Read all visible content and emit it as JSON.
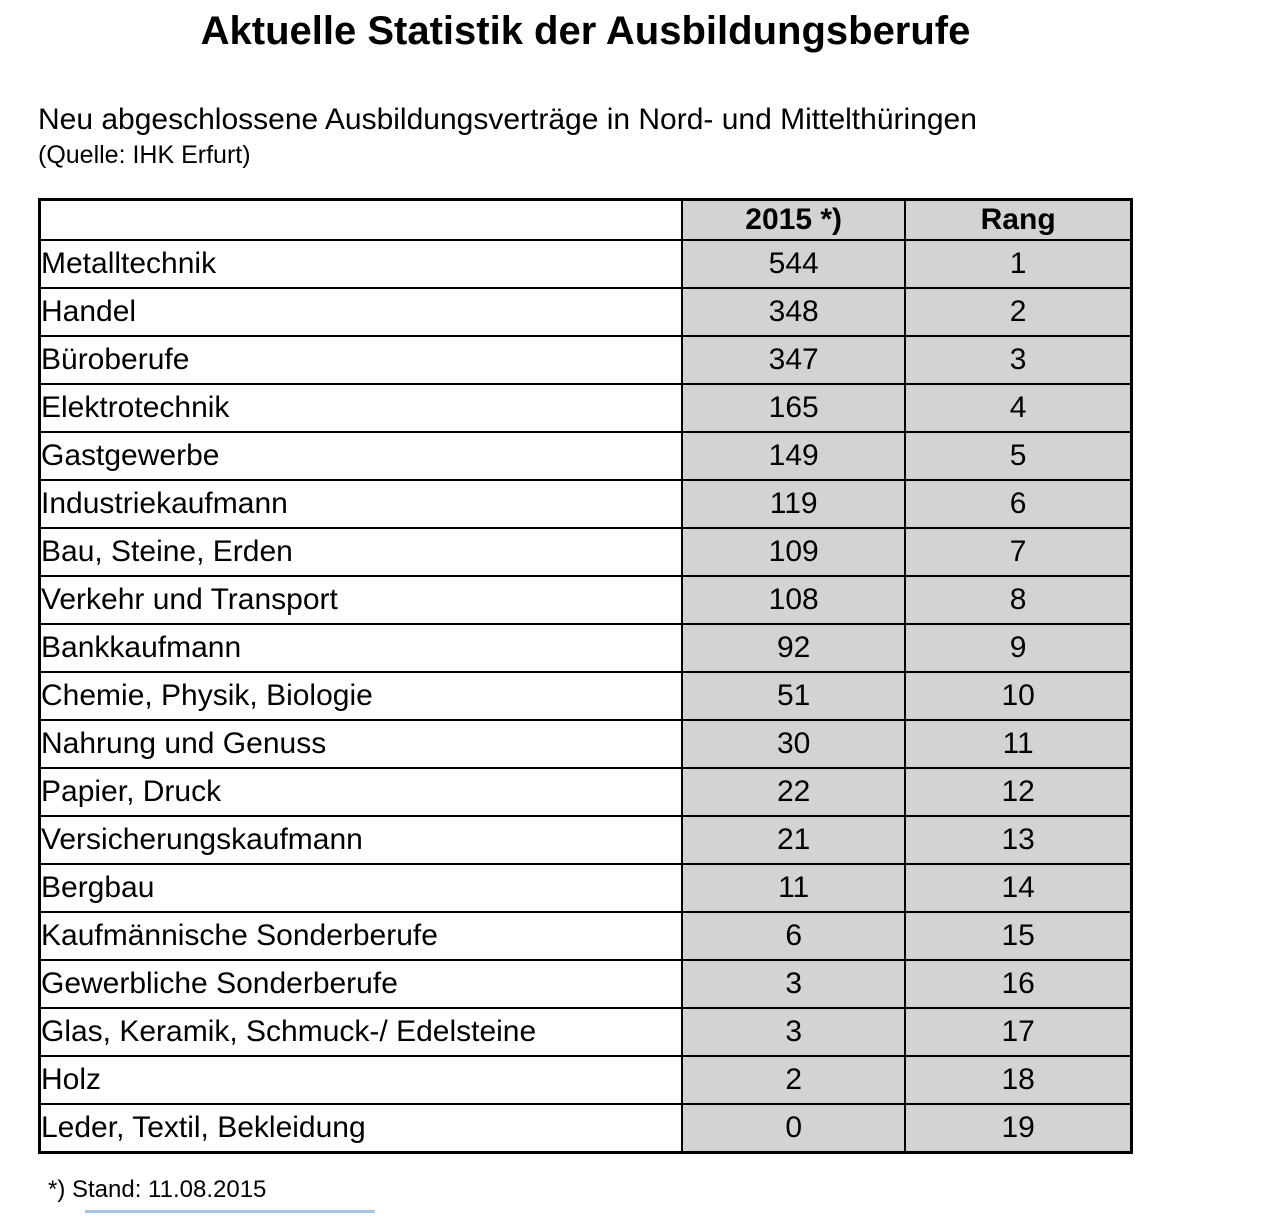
{
  "title": "Aktuelle Statistik der Ausbildungsberufe",
  "subtitle": "Neu abgeschlossene Ausbildungsverträge in Nord- und Mittelthüringen",
  "source": "(Quelle: IHK Erfurt)",
  "footnote": "*) Stand: 11.08.2015",
  "colors": {
    "cell_shade": "#d3d3d3",
    "table_border": "#000000",
    "accent_line": "#a9c4e2"
  },
  "chart_data": {
    "type": "table",
    "title": "Aktuelle Statistik der Ausbildungsberufe",
    "subtitle": "Neu abgeschlossene Ausbildungsverträge in Nord- und Mittelthüringen",
    "source": "(Quelle: IHK Erfurt)",
    "footnote": "*) Stand: 11.08.2015",
    "columns": [
      "",
      "2015 *)",
      "Rang"
    ],
    "rows": [
      {
        "label": "Metalltechnik",
        "value": "544",
        "rank": "1"
      },
      {
        "label": "Handel",
        "value": "348",
        "rank": "2"
      },
      {
        "label": "Büroberufe",
        "value": "347",
        "rank": "3"
      },
      {
        "label": "Elektrotechnik",
        "value": "165",
        "rank": "4"
      },
      {
        "label": "Gastgewerbe",
        "value": "149",
        "rank": "5"
      },
      {
        "label": "Industriekaufmann",
        "value": "119",
        "rank": "6"
      },
      {
        "label": "Bau, Steine, Erden",
        "value": "109",
        "rank": "7"
      },
      {
        "label": "Verkehr und Transport",
        "value": "108",
        "rank": "8"
      },
      {
        "label": "Bankkaufmann",
        "value": "92",
        "rank": "9"
      },
      {
        "label": "Chemie, Physik, Biologie",
        "value": "51",
        "rank": "10"
      },
      {
        "label": "Nahrung und Genuss",
        "value": "30",
        "rank": "11"
      },
      {
        "label": "Papier, Druck",
        "value": "22",
        "rank": "12"
      },
      {
        "label": "Versicherungskaufmann",
        "value": "21",
        "rank": "13"
      },
      {
        "label": "Bergbau",
        "value": "11",
        "rank": "14"
      },
      {
        "label": "Kaufmännische Sonderberufe",
        "value": "6",
        "rank": "15"
      },
      {
        "label": "Gewerbliche Sonderberufe",
        "value": "3",
        "rank": "16"
      },
      {
        "label": "Glas, Keramik, Schmuck-/ Edelsteine",
        "value": "3",
        "rank": "17"
      },
      {
        "label": "Holz",
        "value": "2",
        "rank": "18"
      },
      {
        "label": "Leder, Textil, Bekleidung",
        "value": "0",
        "rank": "19"
      }
    ]
  }
}
